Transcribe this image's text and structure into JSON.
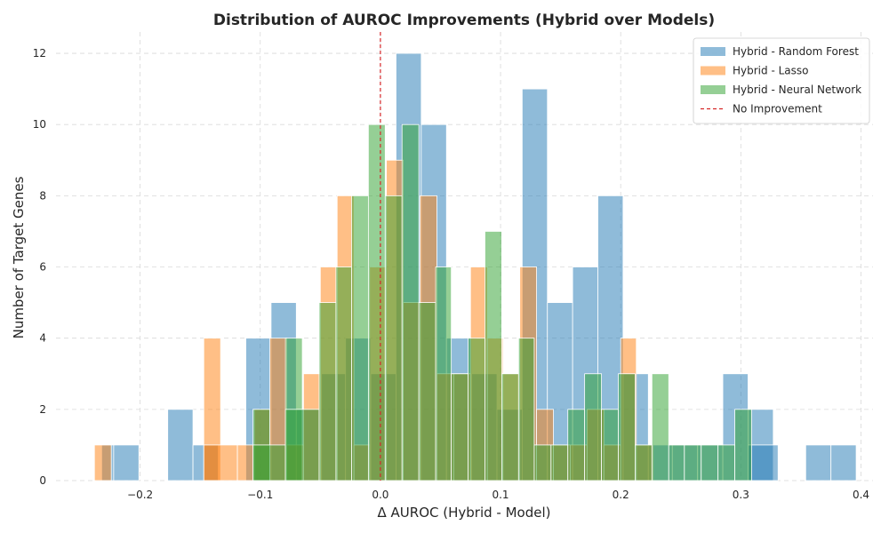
{
  "chart_data": {
    "type": "bar",
    "subtype": "overlapping-histogram",
    "title": "Distribution of AUROC Improvements (Hybrid over Models)",
    "xlabel": "Δ AUROC (Hybrid - Model)",
    "ylabel": "Number of Target Genes",
    "xlim": [
      -0.27,
      0.41
    ],
    "ylim": [
      0,
      12.6
    ],
    "xticks": [
      -0.2,
      -0.1,
      0.0,
      0.1,
      0.2,
      0.3,
      0.4
    ],
    "xtick_labels": [
      "−0.2",
      "−0.1",
      "0.0",
      "0.1",
      "0.2",
      "0.3",
      "0.4"
    ],
    "yticks": [
      0,
      2,
      4,
      6,
      8,
      10,
      12
    ],
    "ytick_labels": [
      "0",
      "2",
      "4",
      "6",
      "8",
      "10",
      "12"
    ],
    "grid": true,
    "legend_position": "top-right",
    "reference_line": {
      "x": 0.0,
      "label": "No Improvement",
      "color": "#d62728",
      "style": "dashed"
    },
    "series": [
      {
        "name": "Hybrid - Random Forest",
        "color": "#1f77b4",
        "opacity": 0.5,
        "bins": [
          [
            -0.232,
            -0.222,
            1
          ],
          [
            -0.222,
            -0.201,
            1
          ],
          [
            -0.177,
            -0.156,
            2
          ],
          [
            -0.156,
            -0.135,
            1
          ],
          [
            -0.112,
            -0.091,
            4
          ],
          [
            -0.091,
            -0.07,
            5
          ],
          [
            -0.07,
            -0.049,
            2
          ],
          [
            -0.049,
            -0.029,
            3
          ],
          [
            -0.029,
            -0.008,
            4
          ],
          [
            -0.008,
            0.013,
            3
          ],
          [
            0.013,
            0.034,
            12
          ],
          [
            0.034,
            0.055,
            10
          ],
          [
            0.055,
            0.076,
            4
          ],
          [
            0.076,
            0.097,
            3
          ],
          [
            0.097,
            0.118,
            2
          ],
          [
            0.118,
            0.139,
            11
          ],
          [
            0.139,
            0.16,
            5
          ],
          [
            0.16,
            0.181,
            6
          ],
          [
            0.181,
            0.202,
            8
          ],
          [
            0.202,
            0.223,
            3
          ],
          [
            0.223,
            0.243,
            1
          ],
          [
            0.243,
            0.264,
            1
          ],
          [
            0.264,
            0.285,
            1
          ],
          [
            0.285,
            0.306,
            3
          ],
          [
            0.306,
            0.327,
            2
          ],
          [
            0.306,
            0.331,
            1
          ],
          [
            0.354,
            0.375,
            1
          ],
          [
            0.375,
            0.396,
            1
          ]
        ]
      },
      {
        "name": "Hybrid - Lasso",
        "color": "#ff7f0e",
        "opacity": 0.5,
        "bins": [
          [
            -0.238,
            -0.224,
            1
          ],
          [
            -0.147,
            -0.133,
            4
          ],
          [
            -0.147,
            -0.119,
            1
          ],
          [
            -0.119,
            -0.105,
            1
          ],
          [
            -0.105,
            -0.092,
            2
          ],
          [
            -0.092,
            -0.078,
            4
          ],
          [
            -0.078,
            -0.064,
            1
          ],
          [
            -0.064,
            -0.05,
            3
          ],
          [
            -0.05,
            -0.036,
            6
          ],
          [
            -0.036,
            -0.022,
            8
          ],
          [
            -0.022,
            -0.009,
            1
          ],
          [
            -0.009,
            0.005,
            6
          ],
          [
            0.005,
            0.019,
            9
          ],
          [
            0.019,
            0.033,
            5
          ],
          [
            0.033,
            0.047,
            8
          ],
          [
            0.047,
            0.061,
            3
          ],
          [
            0.061,
            0.075,
            3
          ],
          [
            0.075,
            0.089,
            6
          ],
          [
            0.089,
            0.102,
            4
          ],
          [
            0.102,
            0.116,
            3
          ],
          [
            0.116,
            0.13,
            6
          ],
          [
            0.13,
            0.144,
            2
          ],
          [
            0.144,
            0.158,
            1
          ],
          [
            0.158,
            0.172,
            1
          ],
          [
            0.172,
            0.186,
            2
          ],
          [
            0.186,
            0.2,
            1
          ],
          [
            0.2,
            0.213,
            4
          ],
          [
            0.213,
            0.227,
            1
          ]
        ]
      },
      {
        "name": "Hybrid - Neural Network",
        "color": "#2ca02c",
        "opacity": 0.5,
        "bins": [
          [
            -0.106,
            -0.092,
            2
          ],
          [
            -0.106,
            -0.079,
            1
          ],
          [
            -0.079,
            -0.065,
            4
          ],
          [
            -0.079,
            -0.051,
            2
          ],
          [
            -0.051,
            -0.037,
            5
          ],
          [
            -0.037,
            -0.024,
            6
          ],
          [
            -0.024,
            -0.01,
            8
          ],
          [
            -0.01,
            0.004,
            10
          ],
          [
            0.004,
            0.018,
            8
          ],
          [
            0.018,
            0.032,
            10
          ],
          [
            0.032,
            0.046,
            5
          ],
          [
            0.046,
            0.059,
            6
          ],
          [
            0.059,
            0.073,
            3
          ],
          [
            0.073,
            0.087,
            4
          ],
          [
            0.087,
            0.101,
            7
          ],
          [
            0.101,
            0.115,
            3
          ],
          [
            0.115,
            0.128,
            4
          ],
          [
            0.128,
            0.142,
            1
          ],
          [
            0.142,
            0.156,
            1
          ],
          [
            0.156,
            0.17,
            2
          ],
          [
            0.17,
            0.184,
            3
          ],
          [
            0.184,
            0.198,
            2
          ],
          [
            0.198,
            0.212,
            3
          ],
          [
            0.212,
            0.226,
            1
          ],
          [
            0.226,
            0.24,
            3
          ],
          [
            0.24,
            0.253,
            1
          ],
          [
            0.253,
            0.267,
            1
          ],
          [
            0.267,
            0.281,
            1
          ],
          [
            0.281,
            0.295,
            1
          ],
          [
            0.295,
            0.309,
            2
          ]
        ]
      }
    ]
  }
}
